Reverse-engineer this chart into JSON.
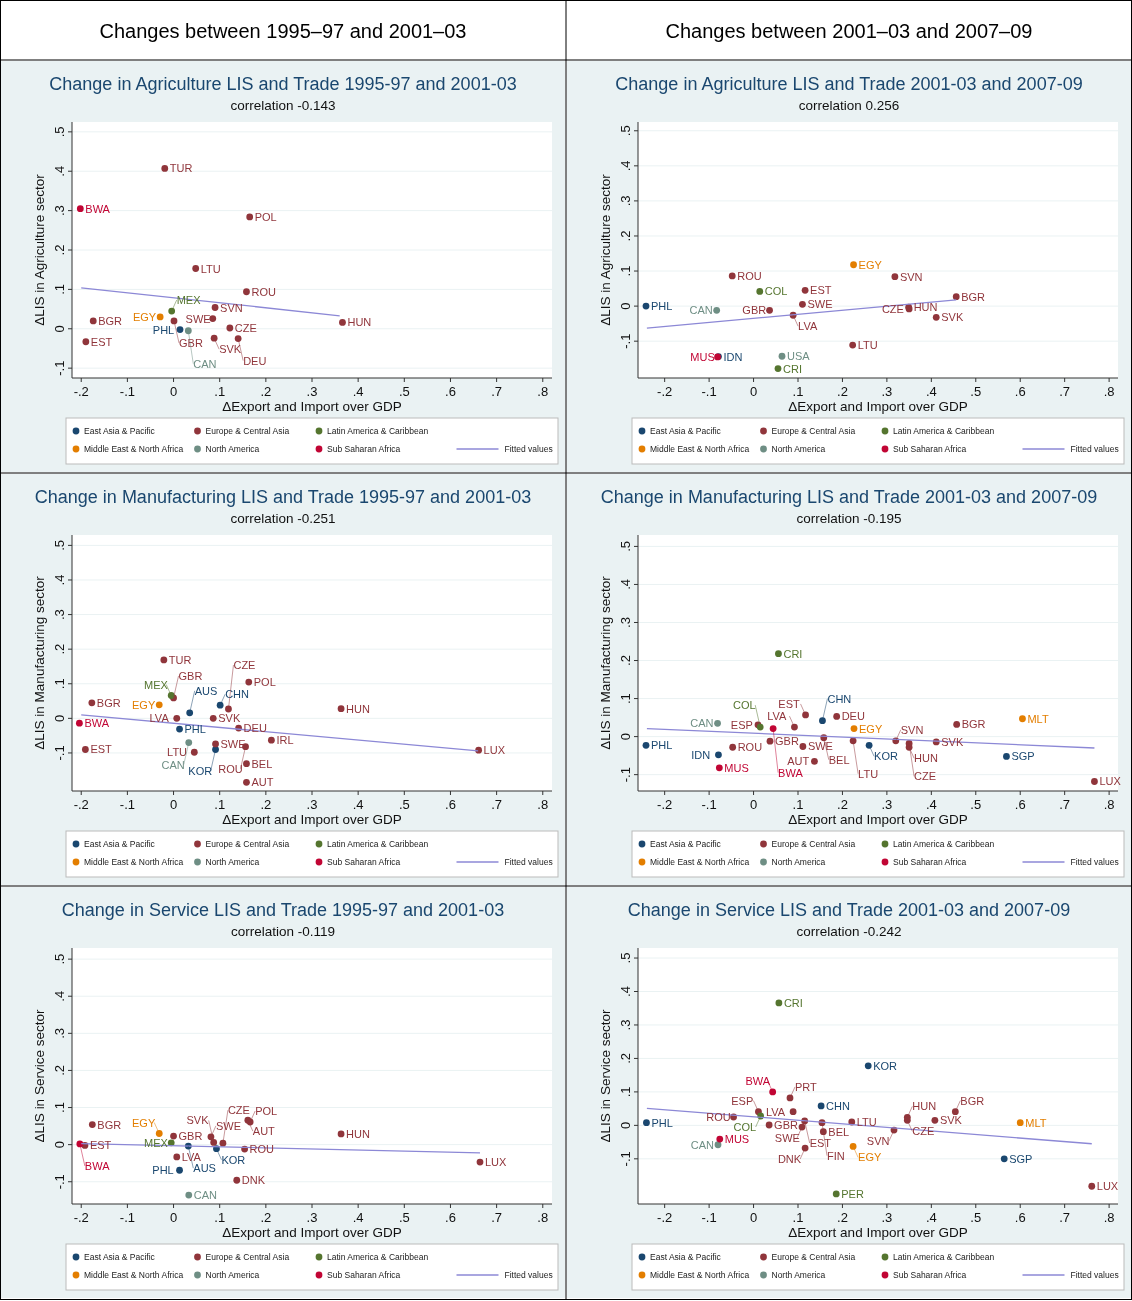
{
  "chart_data": [
    {
      "type": "scatter",
      "title": "Change in Agriculture LIS and Trade 1995-97 and 2001-03",
      "subtitle": "correlation -0.143",
      "xlabel": "ΔExport and Import over GDP",
      "ylabel": "ΔLIS in Agriculture sector",
      "annotations": [
        "Changes between 1995–97 and 2001–03"
      ],
      "xlim": [
        -0.22,
        0.82
      ],
      "ylim": [
        -0.125,
        0.525
      ],
      "xticks": [
        {
          "value": -0.2,
          "label": "-.2"
        },
        {
          "value": -0.1,
          "label": "-.1"
        },
        {
          "value": 0,
          "label": "0"
        },
        {
          "value": 0.1,
          "label": ".1"
        },
        {
          "value": 0.2,
          "label": ".2"
        },
        {
          "value": 0.3,
          "label": ".3"
        },
        {
          "value": 0.4,
          "label": ".4"
        },
        {
          "value": 0.5,
          "label": ".5"
        },
        {
          "value": 0.6,
          "label": ".6"
        },
        {
          "value": 0.7,
          "label": ".7"
        },
        {
          "value": 0.8,
          "label": ".8"
        }
      ],
      "yticks": [
        {
          "value": -0.1,
          "label": "-.1"
        },
        {
          "value": 0,
          "label": "0"
        },
        {
          "value": 0.1,
          "label": ".1"
        },
        {
          "value": 0.2,
          "label": ".2"
        },
        {
          "value": 0.3,
          "label": ".3"
        },
        {
          "value": 0.4,
          "label": ".4"
        },
        {
          "value": 0.5,
          "label": ".5"
        }
      ],
      "grid": "y",
      "legend": "bottom",
      "marker": "circle",
      "series": [
        {
          "name": "East Asia & Pacific",
          "color": "#1a476f",
          "x": [
            0.014
          ],
          "values": [
            -0.002
          ],
          "value_labels": [
            "PHL"
          ]
        },
        {
          "name": "Europe & Central Asia",
          "color": "#90353b",
          "x": [
            -0.019,
            0.165,
            0.048,
            0.158,
            0.09,
            0.085,
            0.366,
            0.122,
            0.088,
            0.14,
            -0.174,
            -0.19,
            0.001
          ],
          "values": [
            0.407,
            0.284,
            0.153,
            0.094,
            0.054,
            0.026,
            0.016,
            0.002,
            -0.024,
            -0.025,
            0.02,
            -0.033,
            0.02
          ],
          "value_labels": [
            "TUR",
            "POL",
            "LTU",
            "ROU",
            "SVN",
            "SWE",
            "HUN",
            "CZE",
            "SVK",
            "DEU",
            "BGR",
            "EST",
            "GBR"
          ]
        },
        {
          "name": "Latin America & Caribbean",
          "color": "#55752f",
          "x": [
            -0.004
          ],
          "values": [
            0.045
          ],
          "value_labels": [
            "MEX"
          ]
        },
        {
          "name": "Middle East & North Africa",
          "color": "#e37e00",
          "x": [
            -0.029
          ],
          "values": [
            0.03
          ],
          "value_labels": [
            "EGY"
          ]
        },
        {
          "name": "North America",
          "color": "#6e8e84",
          "x": [
            0.032
          ],
          "values": [
            -0.005
          ],
          "value_labels": [
            "CAN"
          ]
        },
        {
          "name": "Sub Saharan Africa",
          "color": "#c10534",
          "x": [
            -0.202
          ],
          "values": [
            0.305
          ],
          "value_labels": [
            "BWA"
          ]
        },
        {
          "name": "Fitted values",
          "type": "line",
          "marker": "none",
          "color": "#8c88d6",
          "x": [
            -0.2,
            0.36
          ],
          "values": [
            0.104,
            0.033
          ]
        }
      ]
    },
    {
      "type": "scatter",
      "title": "Change in Agriculture LIS and Trade 2001-03 and 2007-09",
      "subtitle": "correlation 0.256",
      "xlabel": "ΔExport and Import over GDP",
      "ylabel": "ΔLIS in Agriculture sector",
      "annotations": [
        "Changes between 2001–03 and 2007–09"
      ],
      "xlim": [
        -0.26,
        0.82
      ],
      "ylim": [
        -0.205,
        0.525
      ],
      "xticks": [
        {
          "value": -0.2,
          "label": "-.2"
        },
        {
          "value": -0.1,
          "label": "-.1"
        },
        {
          "value": 0,
          "label": "0"
        },
        {
          "value": 0.1,
          "label": ".1"
        },
        {
          "value": 0.2,
          "label": ".2"
        },
        {
          "value": 0.3,
          "label": ".3"
        },
        {
          "value": 0.4,
          "label": ".4"
        },
        {
          "value": 0.5,
          "label": ".5"
        },
        {
          "value": 0.6,
          "label": ".6"
        },
        {
          "value": 0.7,
          "label": ".7"
        },
        {
          "value": 0.8,
          "label": ".8"
        }
      ],
      "yticks": [
        {
          "value": -0.1,
          "label": "-.1"
        },
        {
          "value": 0,
          "label": "0"
        },
        {
          "value": 0.1,
          "label": ".1"
        },
        {
          "value": 0.2,
          "label": ".2"
        },
        {
          "value": 0.3,
          "label": ".3"
        },
        {
          "value": 0.4,
          "label": ".4"
        },
        {
          "value": 0.5,
          "label": ".5"
        }
      ],
      "grid": "y",
      "legend": "bottom",
      "marker": "circle",
      "series": [
        {
          "name": "East Asia & Pacific",
          "color": "#1a476f",
          "x": [
            -0.242,
            -0.079
          ],
          "values": [
            0,
            -0.144
          ],
          "value_labels": [
            "PHL",
            "IDN"
          ]
        },
        {
          "name": "Europe & Central Asia",
          "color": "#90353b",
          "x": [
            -0.048,
            0.116,
            0.036,
            0.11,
            0.089,
            0.318,
            0.349,
            0.35,
            0.456,
            0.411,
            0.223
          ],
          "values": [
            0.086,
            0.045,
            -0.012,
            0.005,
            -0.026,
            0.084,
            -0.003,
            -0.008,
            0.027,
            -0.032,
            -0.111
          ],
          "value_labels": [
            "ROU",
            "EST",
            "GBR",
            "SWE",
            "LVA",
            "SVN",
            "HUN",
            "CZE",
            "BGR",
            "SVK",
            "LTU"
          ]
        },
        {
          "name": "Latin America & Caribbean",
          "color": "#55752f",
          "x": [
            0.014,
            0.055
          ],
          "values": [
            0.042,
            -0.178
          ],
          "value_labels": [
            "COL",
            "CRI"
          ]
        },
        {
          "name": "Middle East & North Africa",
          "color": "#e37e00",
          "x": [
            0.225
          ],
          "values": [
            0.118
          ],
          "value_labels": [
            "EGY"
          ]
        },
        {
          "name": "North America",
          "color": "#6e8e84",
          "x": [
            -0.083,
            0.064
          ],
          "values": [
            -0.012,
            -0.143
          ],
          "value_labels": [
            "CAN",
            "USA"
          ]
        },
        {
          "name": "Sub Saharan Africa",
          "color": "#c10534",
          "x": [
            -0.081
          ],
          "values": [
            -0.145
          ],
          "value_labels": [
            "MUS"
          ]
        },
        {
          "name": "Fitted values",
          "type": "line",
          "marker": "none",
          "color": "#8c88d6",
          "x": [
            -0.24,
            0.456
          ],
          "values": [
            -0.063,
            0.018
          ]
        }
      ]
    },
    {
      "type": "scatter",
      "title": "Change in Manufacturing LIS and Trade 1995-97 and 2001-03",
      "subtitle": "correlation -0.251",
      "xlabel": "ΔExport and Import over GDP",
      "ylabel": "ΔLIS in Manufacturing sector",
      "xlim": [
        -0.22,
        0.82
      ],
      "ylim": [
        -0.21,
        0.53
      ],
      "xticks": [
        {
          "value": -0.2,
          "label": "-.2"
        },
        {
          "value": -0.1,
          "label": "-.1"
        },
        {
          "value": 0,
          "label": "0"
        },
        {
          "value": 0.1,
          "label": ".1"
        },
        {
          "value": 0.2,
          "label": ".2"
        },
        {
          "value": 0.3,
          "label": ".3"
        },
        {
          "value": 0.4,
          "label": ".4"
        },
        {
          "value": 0.5,
          "label": ".5"
        },
        {
          "value": 0.6,
          "label": ".6"
        },
        {
          "value": 0.7,
          "label": ".7"
        },
        {
          "value": 0.8,
          "label": ".8"
        }
      ],
      "yticks": [
        {
          "value": -0.1,
          "label": "-.1"
        },
        {
          "value": 0,
          "label": "0"
        },
        {
          "value": 0.1,
          "label": ".1"
        },
        {
          "value": 0.2,
          "label": ".2"
        },
        {
          "value": 0.3,
          "label": ".3"
        },
        {
          "value": 0.4,
          "label": ".4"
        },
        {
          "value": 0.5,
          "label": ".5"
        }
      ],
      "grid": "y",
      "legend": "bottom",
      "marker": "circle",
      "series": [
        {
          "name": "East Asia & Pacific",
          "color": "#1a476f",
          "x": [
            0.035,
            0.101,
            0.013,
            0.091
          ],
          "values": [
            0.016,
            0.038,
            -0.031,
            -0.09
          ],
          "value_labels": [
            "AUS",
            "CHN",
            "PHL",
            "KOR"
          ]
        },
        {
          "name": "Europe & Central Asia",
          "color": "#90353b",
          "x": [
            -0.021,
            0.163,
            -0.177,
            -0.191,
            0,
            0.086,
            0.119,
            0.007,
            0.141,
            0.363,
            0.212,
            0.661,
            0.045,
            0.091,
            0.156,
            0.158,
            0.158
          ],
          "values": [
            0.169,
            0.105,
            0.045,
            -0.09,
            0.059,
            0,
            0.027,
            0,
            -0.028,
            0.028,
            -0.063,
            -0.092,
            -0.098,
            -0.074,
            -0.082,
            -0.131,
            -0.185
          ],
          "value_labels": [
            "TUR",
            "POL",
            "BGR",
            "EST",
            "GBR",
            "SVK",
            "CZE",
            "LVA",
            "DEU",
            "HUN",
            "IRL",
            "LUX",
            "LTU",
            "SWE",
            "ROU",
            "BEL",
            "AUT"
          ]
        },
        {
          "name": "Latin America & Caribbean",
          "color": "#55752f",
          "x": [
            -0.005
          ],
          "values": [
            0.066
          ],
          "value_labels": [
            "MEX"
          ]
        },
        {
          "name": "Middle East & North Africa",
          "color": "#e37e00",
          "x": [
            -0.031
          ],
          "values": [
            0.039
          ],
          "value_labels": [
            "EGY"
          ]
        },
        {
          "name": "North America",
          "color": "#6e8e84",
          "x": [
            0.033
          ],
          "values": [
            -0.07
          ],
          "value_labels": [
            "CAN"
          ]
        },
        {
          "name": "Sub Saharan Africa",
          "color": "#c10534",
          "x": [
            -0.204
          ],
          "values": [
            -0.014
          ],
          "value_labels": [
            "BWA"
          ]
        },
        {
          "name": "Fitted values",
          "type": "line",
          "marker": "none",
          "color": "#8c88d6",
          "x": [
            -0.2,
            0.66
          ],
          "values": [
            0.01,
            -0.094
          ]
        }
      ]
    },
    {
      "type": "scatter",
      "title": "Change in Manufacturing LIS and Trade 2001-03 and 2007-09",
      "subtitle": "correlation -0.195",
      "xlabel": "ΔExport and Import over GDP",
      "ylabel": "ΔLIS in Manufacturing sector",
      "xlim": [
        -0.26,
        0.82
      ],
      "ylim": [
        -0.143,
        0.53
      ],
      "xticks": [
        {
          "value": -0.2,
          "label": "-.2"
        },
        {
          "value": -0.1,
          "label": "-.1"
        },
        {
          "value": 0,
          "label": "0"
        },
        {
          "value": 0.1,
          "label": ".1"
        },
        {
          "value": 0.2,
          "label": ".2"
        },
        {
          "value": 0.3,
          "label": ".3"
        },
        {
          "value": 0.4,
          "label": ".4"
        },
        {
          "value": 0.5,
          "label": ".5"
        },
        {
          "value": 0.6,
          "label": ".6"
        },
        {
          "value": 0.7,
          "label": ".7"
        },
        {
          "value": 0.8,
          "label": ".8"
        }
      ],
      "yticks": [
        {
          "value": -0.1,
          "label": "-.1"
        },
        {
          "value": 0,
          "label": "0"
        },
        {
          "value": 0.1,
          "label": ".1"
        },
        {
          "value": 0.2,
          "label": ".2"
        },
        {
          "value": 0.3,
          "label": ".3"
        },
        {
          "value": 0.4,
          "label": ".4"
        },
        {
          "value": 0.5,
          "label": ".5"
        }
      ],
      "grid": "y",
      "legend": "bottom",
      "marker": "circle",
      "series": [
        {
          "name": "East Asia & Pacific",
          "color": "#1a476f",
          "x": [
            -0.242,
            -0.079,
            0.155,
            0.26,
            0.569
          ],
          "values": [
            -0.023,
            -0.048,
            0.042,
            -0.023,
            -0.052
          ],
          "value_labels": [
            "PHL",
            "IDN",
            "CHN",
            "KOR",
            "SGP"
          ]
        },
        {
          "name": "Europe & Central Asia",
          "color": "#90353b",
          "x": [
            -0.047,
            0.01,
            0.092,
            0.037,
            0.117,
            0.187,
            0.111,
            0.158,
            0.137,
            0.224,
            0.32,
            0.35,
            0.35,
            0.411,
            0.457,
            0.767
          ],
          "values": [
            -0.028,
            0.031,
            0.025,
            -0.012,
            0.057,
            0.053,
            -0.026,
            -0.003,
            -0.065,
            -0.011,
            -0.011,
            -0.028,
            -0.018,
            -0.014,
            0.032,
            -0.118
          ],
          "value_labels": [
            "ROU",
            "ESP",
            "LVA",
            "GBR",
            "EST",
            "DEU",
            "SWE",
            "BEL",
            "AUT",
            "LTU",
            "SVN",
            "HUN",
            "CZE",
            "SVK",
            "BGR",
            "LUX"
          ]
        },
        {
          "name": "Latin America & Caribbean",
          "color": "#55752f",
          "x": [
            0.056,
            0.015
          ],
          "values": [
            0.218,
            0.025
          ],
          "value_labels": [
            "CRI",
            "COL"
          ]
        },
        {
          "name": "Middle East & North Africa",
          "color": "#e37e00",
          "x": [
            0.226,
            0.605
          ],
          "values": [
            0.021,
            0.047
          ],
          "value_labels": [
            "EGY",
            "MLT"
          ]
        },
        {
          "name": "North America",
          "color": "#6e8e84",
          "x": [
            -0.081
          ],
          "values": [
            0.035
          ],
          "value_labels": [
            "CAN"
          ]
        },
        {
          "name": "Sub Saharan Africa",
          "color": "#c10534",
          "x": [
            -0.077,
            0.044
          ],
          "values": [
            -0.082,
            0.021
          ],
          "value_labels": [
            "MUS",
            "BWA"
          ]
        },
        {
          "name": "Fitted values",
          "type": "line",
          "marker": "none",
          "color": "#8c88d6",
          "x": [
            -0.24,
            0.767
          ],
          "values": [
            0.021,
            -0.03
          ]
        }
      ]
    },
    {
      "type": "scatter",
      "title": "Change in Service LIS and Trade 1995-97 and 2001-03",
      "subtitle": "correlation -0.119",
      "xlabel": "ΔExport and Import over GDP",
      "ylabel": "ΔLIS in Service sector",
      "xlim": [
        -0.22,
        0.82
      ],
      "ylim": [
        -0.16,
        0.53
      ],
      "xticks": [
        {
          "value": -0.2,
          "label": "-.2"
        },
        {
          "value": -0.1,
          "label": "-.1"
        },
        {
          "value": 0,
          "label": "0"
        },
        {
          "value": 0.1,
          "label": ".1"
        },
        {
          "value": 0.2,
          "label": ".2"
        },
        {
          "value": 0.3,
          "label": ".3"
        },
        {
          "value": 0.4,
          "label": ".4"
        },
        {
          "value": 0.5,
          "label": ".5"
        },
        {
          "value": 0.6,
          "label": ".6"
        },
        {
          "value": 0.7,
          "label": ".7"
        },
        {
          "value": 0.8,
          "label": ".8"
        }
      ],
      "yticks": [
        {
          "value": -0.1,
          "label": "-.1"
        },
        {
          "value": 0,
          "label": "0"
        },
        {
          "value": 0.1,
          "label": ".1"
        },
        {
          "value": 0.2,
          "label": ".2"
        },
        {
          "value": 0.3,
          "label": ".3"
        },
        {
          "value": 0.4,
          "label": ".4"
        },
        {
          "value": 0.5,
          "label": ".5"
        }
      ],
      "grid": "y",
      "legend": "bottom",
      "marker": "circle",
      "series": [
        {
          "name": "East Asia & Pacific",
          "color": "#1a476f",
          "x": [
            0.032,
            0.093,
            0.013
          ],
          "values": [
            -0.004,
            -0.011,
            -0.069
          ],
          "value_labels": [
            "AUS",
            "KOR",
            "PHL"
          ]
        },
        {
          "name": "Europe & Central Asia",
          "color": "#90353b",
          "x": [
            -0.176,
            -0.192,
            0,
            0.081,
            0.087,
            0.107,
            0.154,
            0.161,
            0.166,
            0.363,
            0.007,
            0.137,
            0.664
          ],
          "values": [
            0.054,
            -0.002,
            0.023,
            0.021,
            0.006,
            0.004,
            -0.012,
            0.066,
            0.061,
            0.029,
            -0.033,
            -0.096,
            -0.047
          ],
          "value_labels": [
            "BGR",
            "EST",
            "GBR",
            "SWE",
            "SVK",
            "CZE",
            "ROU",
            "AUT",
            "POL",
            "HUN",
            "LVA",
            "DNK",
            "LUX"
          ]
        },
        {
          "name": "Latin America & Caribbean",
          "color": "#55752f",
          "x": [
            -0.005
          ],
          "values": [
            0.005
          ],
          "value_labels": [
            "MEX"
          ]
        },
        {
          "name": "Middle East & North Africa",
          "color": "#e37e00",
          "x": [
            -0.031
          ],
          "values": [
            0.03
          ],
          "value_labels": [
            "EGY"
          ]
        },
        {
          "name": "North America",
          "color": "#6e8e84",
          "x": [
            0.033
          ],
          "values": [
            -0.136
          ],
          "value_labels": [
            "CAN"
          ]
        },
        {
          "name": "Sub Saharan Africa",
          "color": "#c10534",
          "x": [
            -0.203
          ],
          "values": [
            0.002
          ],
          "value_labels": [
            "BWA"
          ]
        },
        {
          "name": "Fitted values",
          "type": "line",
          "marker": "none",
          "color": "#8c88d6",
          "x": [
            -0.2,
            0.664
          ],
          "values": [
            0.003,
            -0.022
          ]
        }
      ]
    },
    {
      "type": "scatter",
      "title": "Change in Service LIS and Trade 2001-03 and 2007-09",
      "subtitle": "correlation -0.242",
      "xlabel": "ΔExport and Import over GDP",
      "ylabel": "ΔLIS in Service sector",
      "xlim": [
        -0.26,
        0.82
      ],
      "ylim": [
        -0.235,
        0.53
      ],
      "xticks": [
        {
          "value": -0.2,
          "label": "-.2"
        },
        {
          "value": -0.1,
          "label": "-.1"
        },
        {
          "value": 0,
          "label": "0"
        },
        {
          "value": 0.1,
          "label": ".1"
        },
        {
          "value": 0.2,
          "label": ".2"
        },
        {
          "value": 0.3,
          "label": ".3"
        },
        {
          "value": 0.4,
          "label": ".4"
        },
        {
          "value": 0.5,
          "label": ".5"
        },
        {
          "value": 0.6,
          "label": ".6"
        },
        {
          "value": 0.7,
          "label": ".7"
        },
        {
          "value": 0.8,
          "label": ".8"
        }
      ],
      "yticks": [
        {
          "value": -0.1,
          "label": "-.1"
        },
        {
          "value": 0,
          "label": "0"
        },
        {
          "value": 0.1,
          "label": ".1"
        },
        {
          "value": 0.2,
          "label": ".2"
        },
        {
          "value": 0.3,
          "label": ".3"
        },
        {
          "value": 0.4,
          "label": ".4"
        },
        {
          "value": 0.5,
          "label": ".5"
        }
      ],
      "grid": "y",
      "legend": "bottom",
      "marker": "circle",
      "series": [
        {
          "name": "East Asia & Pacific",
          "color": "#1a476f",
          "x": [
            0.258,
            0.152,
            -0.241,
            0.564
          ],
          "values": [
            0.178,
            0.058,
            0.008,
            -0.1
          ],
          "value_labels": [
            "KOR",
            "CHN",
            "PHL",
            "SGP"
          ]
        },
        {
          "name": "Europe & Central Asia",
          "color": "#90353b",
          "x": [
            0.082,
            0.011,
            0.089,
            -0.045,
            0.035,
            0.115,
            0.109,
            0.154,
            0.157,
            0.221,
            0.116,
            0.346,
            0.346,
            0.408,
            0.316,
            0.454,
            0.761
          ],
          "values": [
            0.082,
            0.041,
            0.041,
            0.025,
            0.001,
            0.013,
            -0.005,
            0.008,
            -0.019,
            0.01,
            -0.068,
            0.024,
            0.015,
            0.015,
            -0.014,
            0.041,
            -0.182
          ],
          "value_labels": [
            "PRT",
            "ESP",
            "LVA",
            "ROU",
            "GBR",
            "EST",
            "SWE",
            "FIN",
            "BEL",
            "LTU",
            "DNK",
            "HUN",
            "CZE",
            "SVK",
            "SVN",
            "BGR",
            "LUX"
          ]
        },
        {
          "name": "Latin America & Caribbean",
          "color": "#55752f",
          "x": [
            0.057,
            0.016,
            0.186
          ],
          "values": [
            0.366,
            0.028,
            -0.205
          ],
          "value_labels": [
            "CRI",
            "COL",
            "PER"
          ]
        },
        {
          "name": "Middle East & North Africa",
          "color": "#e37e00",
          "x": [
            0.224,
            0.6
          ],
          "values": [
            -0.063,
            0.008
          ],
          "value_labels": [
            "EGY",
            "MLT"
          ]
        },
        {
          "name": "North America",
          "color": "#6e8e84",
          "x": [
            -0.08
          ],
          "values": [
            -0.058
          ],
          "value_labels": [
            "CAN"
          ]
        },
        {
          "name": "Sub Saharan Africa",
          "color": "#c10534",
          "x": [
            0.043,
            -0.076
          ],
          "values": [
            0.1,
            -0.041
          ],
          "value_labels": [
            "BWA",
            "MUS"
          ]
        },
        {
          "name": "Fitted values",
          "type": "line",
          "marker": "none",
          "color": "#8c88d6",
          "x": [
            -0.24,
            0.761
          ],
          "values": [
            0.051,
            -0.055
          ]
        }
      ]
    }
  ]
}
